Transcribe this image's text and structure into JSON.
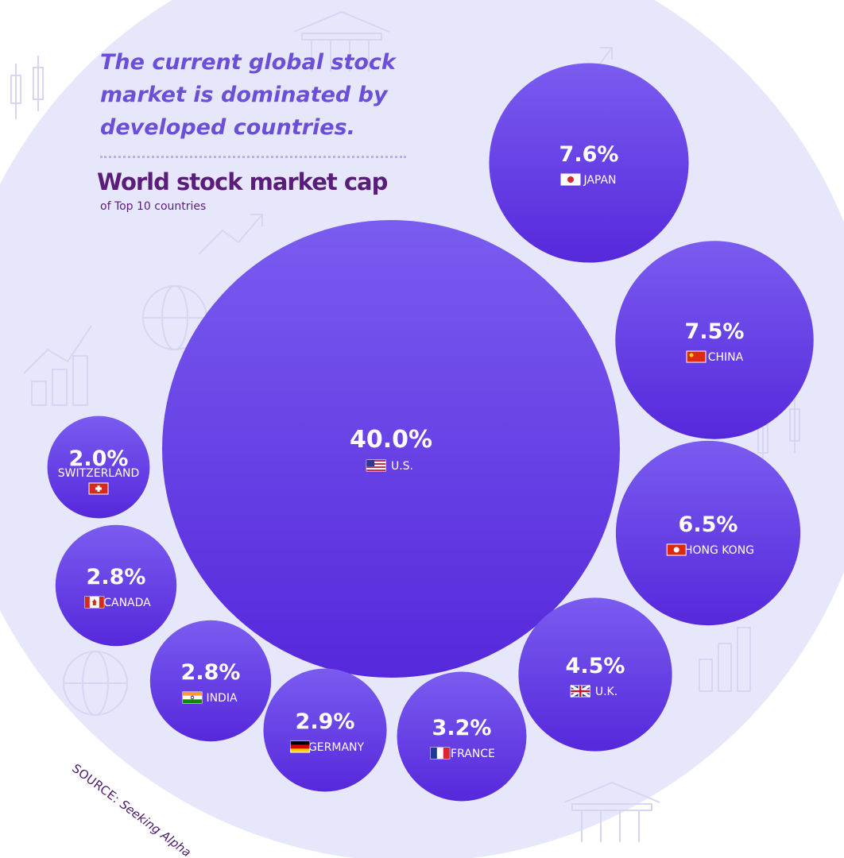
{
  "headline": "The current global stock market is dominated by developed countries.",
  "colors": {
    "bubble_top": "#7a5cf0",
    "bubble_bottom": "#5628db",
    "background": "#e7e7fb",
    "headline": "#6b4fd8",
    "title": "#5a1e7a"
  },
  "source": {
    "label": "SOURCE:",
    "value": "Seeking Alpha"
  },
  "chart_data": {
    "type": "bubble",
    "title": "World stock market cap",
    "subtitle": "of Top 10 countries",
    "unit": "%",
    "points": [
      {
        "country": "U.S.",
        "display": "40.0%",
        "value": 40.0,
        "flag": "us-flag-icon"
      },
      {
        "country": "JAPAN",
        "display": "7.6%",
        "value": 7.6,
        "flag": "japan-flag-icon"
      },
      {
        "country": "CHINA",
        "display": "7.5%",
        "value": 7.5,
        "flag": "china-flag-icon"
      },
      {
        "country": "HONG KONG",
        "display": "6.5%",
        "value": 6.5,
        "flag": "hong-kong-flag-icon"
      },
      {
        "country": "U.K.",
        "display": "4.5%",
        "value": 4.5,
        "flag": "uk-flag-icon"
      },
      {
        "country": "FRANCE",
        "display": "3.2%",
        "value": 3.2,
        "flag": "france-flag-icon"
      },
      {
        "country": "GERMANY",
        "display": "2.9%",
        "value": 2.9,
        "flag": "germany-flag-icon"
      },
      {
        "country": "INDIA",
        "display": "2.8%",
        "value": 2.8,
        "flag": "india-flag-icon"
      },
      {
        "country": "CANADA",
        "display": "2.8%",
        "value": 2.8,
        "flag": "canada-flag-icon"
      },
      {
        "country": "SWITZERLAND",
        "display": "2.0%",
        "value": 2.0,
        "flag": "switzerland-flag-icon"
      }
    ]
  }
}
